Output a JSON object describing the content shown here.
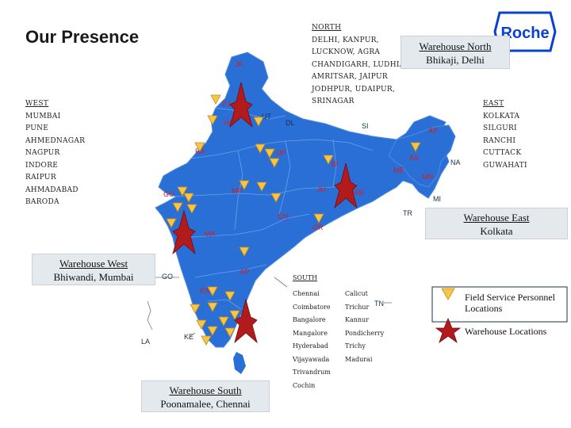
{
  "page": {
    "title": "Our Presence"
  },
  "logo": {
    "text": "Roche",
    "color": "#0b41cd"
  },
  "colors": {
    "map_fill": "#2a6fd6",
    "map_dark": "#1d5bb8",
    "marker_field": "#f6c646",
    "marker_warehouse": "#b21b1b",
    "label_red": "#d21e1e",
    "label_dark": "#1c2f4a"
  },
  "regions": {
    "north": {
      "heading": "NORTH",
      "lines": [
        "DELHI,  KANPUR,",
        "LUCKNOW, AGRA",
        "CHANDIGARH, LUDHIANA",
        "AMRITSAR,  JAIPUR",
        "JODHPUR, UDAIPUR,",
        "SRINAGAR"
      ]
    },
    "west": {
      "heading": "WEST",
      "lines": [
        "MUMBAI",
        "PUNE",
        "AHMEDNAGAR",
        "NAGPUR",
        "INDORE",
        "RAIPUR",
        "AHMADABAD",
        "BARODA"
      ]
    },
    "east": {
      "heading": "EAST",
      "lines": [
        "KOLKATA",
        "SILGURI",
        "RANCHI",
        "CUTTACK",
        "GUWAHATI"
      ]
    },
    "south": {
      "heading": "SOUTH",
      "col1": [
        "Chennai",
        "Coimbatore",
        "Bangalore",
        "Mangalore",
        "Hyderabad",
        "Vijayawada",
        "Trivandrum",
        "Cochin"
      ],
      "col2": [
        "Calicut",
        "Trichur",
        "Kannur",
        "Pondicherry",
        "Trichy",
        "Madurai"
      ]
    }
  },
  "warehouses": {
    "north": {
      "label": "Warehouse North",
      "location": "Bhikaji, Delhi"
    },
    "east": {
      "label": "Warehouse East",
      "location": "Kolkata"
    },
    "west": {
      "label": "Warehouse West",
      "location": "Bhiwandi, Mumbai"
    },
    "south": {
      "label": "Warehouse South",
      "location": "Poonamalee, Chennai"
    }
  },
  "legend": {
    "field_service": "Field Service Personnel Locations",
    "warehouse": "Warehouse Locations"
  },
  "state_labels": {
    "JK": "JK",
    "PJ": "PJ",
    "HA": "HA",
    "UT": "UT",
    "DL": "DL",
    "SI": "SI",
    "AP_NE": "AP",
    "RA": "RA",
    "UP": "UP",
    "AS": "AS",
    "NA": "NA",
    "BI": "BI",
    "ME": "ME",
    "MN": "MN",
    "GU": "GU",
    "MP": "MP",
    "JH": "JH",
    "WB": "WB",
    "MI": "MI",
    "TR": "TR",
    "CH": "CH",
    "OR": "OR",
    "MA": "MA",
    "GO": "GO",
    "AP": "AP",
    "KA": "KA",
    "TN": "TN",
    "KE": "KE",
    "LA": "LA"
  }
}
